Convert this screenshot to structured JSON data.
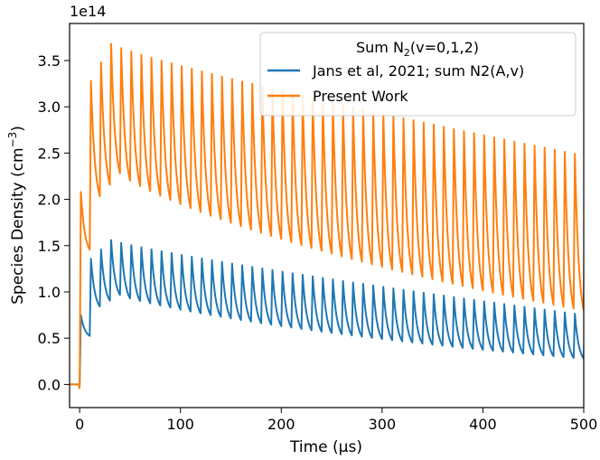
{
  "chart_data": {
    "type": "line",
    "xlabel": "Time (μs)",
    "ylabel": "Species Density (cm⁻³)",
    "offset_text": "1e14",
    "xlim": [
      -10,
      500
    ],
    "ylim": [
      -0.25,
      3.9
    ],
    "xticks": [
      0,
      100,
      200,
      300,
      400,
      500
    ],
    "yticks": [
      0.0,
      0.5,
      1.0,
      1.5,
      2.0,
      2.5,
      3.0,
      3.5
    ],
    "grid": false,
    "legend": {
      "title_prefix": "Sum N",
      "title_sub": "2",
      "title_suffix": "(v=0,1,2)",
      "placement": "top-right"
    },
    "series": [
      {
        "name": "Jans et al, 2021; sum N2(A,v)",
        "color": "#1f77b4",
        "baseline": 0.0,
        "pulse_period_us": 10,
        "pulse_start_us": 0,
        "first_pulse_peak": 0.75,
        "max_peak": 1.56,
        "max_peak_time_us": 30,
        "final_peak": 0.75,
        "final_trough": 0.27
      },
      {
        "name": "Present Work",
        "color": "#ff7f0e",
        "baseline": 0.0,
        "pulse_period_us": 10,
        "pulse_start_us": 0,
        "first_pulse_peak": 2.08,
        "max_peak": 3.68,
        "max_peak_time_us": 30,
        "final_peak": 2.47,
        "final_trough": 0.78
      }
    ]
  }
}
